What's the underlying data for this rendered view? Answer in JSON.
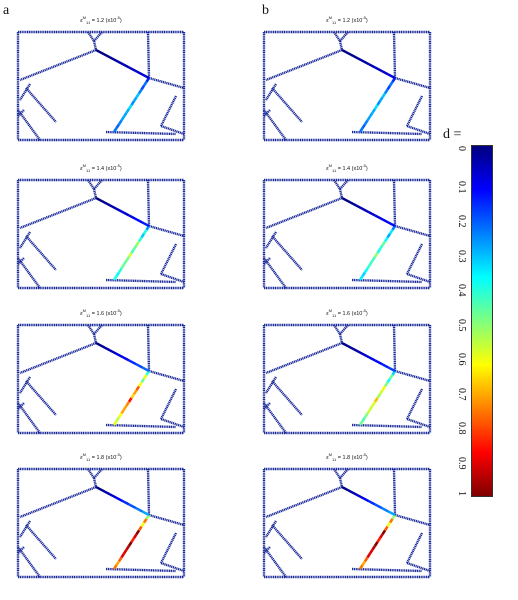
{
  "figure": {
    "column_labels": [
      "a",
      "b"
    ],
    "colorbar_label": "d =",
    "colorbar_ticks": [
      "0",
      "0.1",
      "0.2",
      "0.3",
      "0.4",
      "0.5",
      "0.6",
      "0.7",
      "0.8",
      "0.9",
      "1"
    ],
    "colorbar_colors": [
      "#00007f",
      "#0000ff",
      "#007fff",
      "#00ffff",
      "#7fff7f",
      "#ffff00",
      "#ff7f00",
      "#ff0000",
      "#7f0000"
    ],
    "panels": [
      {
        "symbol": "ε",
        "sup": "M",
        "sub": "11",
        "value": "= 1.2",
        "unit": "(x10",
        "unit_sup": "-5",
        "unit_end": ")",
        "damage_level": 0.3
      },
      {
        "symbol": "ε",
        "sup": "M",
        "sub": "11",
        "value": "= 1.2",
        "unit": "(x10",
        "unit_sup": "-5",
        "unit_end": ")",
        "damage_level": 0.3
      },
      {
        "symbol": "ε",
        "sup": "M",
        "sub": "11",
        "value": "= 1.4",
        "unit": "(x10",
        "unit_sup": "-5",
        "unit_end": ")",
        "damage_level": 0.5
      },
      {
        "symbol": "ε",
        "sup": "M",
        "sub": "11",
        "value": "= 1.4",
        "unit": "(x10",
        "unit_sup": "-5",
        "unit_end": ")",
        "damage_level": 0.45
      },
      {
        "symbol": "ε",
        "sup": "M",
        "sub": "11",
        "value": "= 1.6",
        "unit": "(x10",
        "unit_sup": "-5",
        "unit_end": ")",
        "damage_level": 0.75
      },
      {
        "symbol": "ε",
        "sup": "M",
        "sub": "11",
        "value": "= 1.6",
        "unit": "(x10",
        "unit_sup": "-5",
        "unit_end": ")",
        "damage_level": 0.6
      },
      {
        "symbol": "ε",
        "sup": "M",
        "sub": "11",
        "value": "= 1.8",
        "unit": "(x10",
        "unit_sup": "-5",
        "unit_end": ")",
        "damage_level": 0.95
      },
      {
        "symbol": "ε",
        "sup": "M",
        "sub": "11",
        "value": "= 1.8",
        "unit": "(x10",
        "unit_sup": "-5",
        "unit_end": ")",
        "damage_level": 0.95
      }
    ]
  }
}
